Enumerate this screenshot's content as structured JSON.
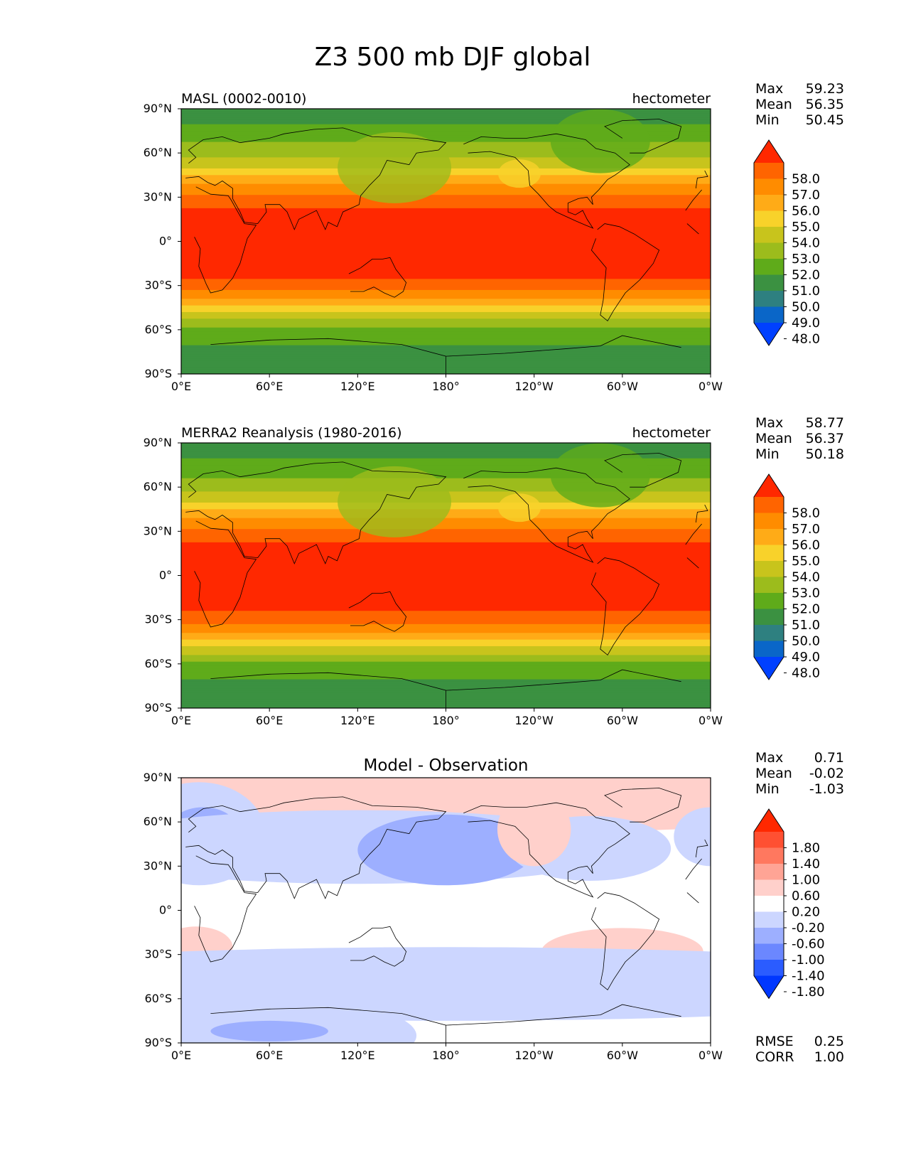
{
  "figure_title": "Z3 500 mb DJF global",
  "colors": {
    "abs_levels": [
      "#0040ff",
      "#0a66c8",
      "#2e8080",
      "#3b9141",
      "#5fab1a",
      "#9cbc1c",
      "#c8c41c",
      "#f8d22a",
      "#ffab17",
      "#ff8c00",
      "#ff6400",
      "#ff2800"
    ],
    "diff_levels": [
      "#0037ff",
      "#2b5cff",
      "#6b87ff",
      "#9dafff",
      "#ccd6ff",
      "#ffffff",
      "#ffd0cb",
      "#ffa495",
      "#ff785f",
      "#ff5032",
      "#ff2800"
    ],
    "coastline": "#000000"
  },
  "axes": {
    "lat_ticks": [
      "90°N",
      "60°N",
      "30°N",
      "0°",
      "30°S",
      "60°S",
      "90°S"
    ],
    "lon_ticks": [
      "0°E",
      "60°E",
      "120°E",
      "180°",
      "120°W",
      "60°W",
      "0°W"
    ]
  },
  "panels": [
    {
      "id": "model",
      "left_title": "MASL (0002-0010)",
      "center_title": "",
      "right_title": "hectometer",
      "stats": [
        {
          "label": "Max",
          "value": "59.23"
        },
        {
          "label": "Mean",
          "value": "56.35"
        },
        {
          "label": "Min",
          "value": "50.45"
        }
      ],
      "extra_stats": [],
      "colorbar": {
        "kind": "abs",
        "labels": [
          "58.0",
          "57.0",
          "56.0",
          "55.0",
          "54.0",
          "53.0",
          "52.0",
          "51.0",
          "50.0",
          "49.0",
          "48.0"
        ]
      }
    },
    {
      "id": "obs",
      "left_title": "MERRA2 Reanalysis (1980-2016)",
      "center_title": "",
      "right_title": "hectometer",
      "stats": [
        {
          "label": "Max",
          "value": "58.77"
        },
        {
          "label": "Mean",
          "value": "56.37"
        },
        {
          "label": "Min",
          "value": "50.18"
        }
      ],
      "extra_stats": [],
      "colorbar": {
        "kind": "abs",
        "labels": [
          "58.0",
          "57.0",
          "56.0",
          "55.0",
          "54.0",
          "53.0",
          "52.0",
          "51.0",
          "50.0",
          "49.0",
          "48.0"
        ]
      }
    },
    {
      "id": "diff",
      "left_title": "",
      "center_title": "Model - Observation",
      "right_title": "",
      "stats": [
        {
          "label": "Max",
          "value": "0.71"
        },
        {
          "label": "Mean",
          "value": "-0.02"
        },
        {
          "label": "Min",
          "value": "-1.03"
        }
      ],
      "extra_stats": [
        {
          "label": "RMSE",
          "value": "0.25"
        },
        {
          "label": "CORR",
          "value": "1.00"
        }
      ],
      "colorbar": {
        "kind": "diff",
        "labels": [
          "1.80",
          "1.40",
          "1.00",
          "0.60",
          "0.20",
          "-0.20",
          "-0.60",
          "-1.00",
          "-1.40",
          "-1.80"
        ]
      }
    }
  ],
  "chart_data": [
    {
      "type": "heatmap",
      "title": "MASL (0002-0010)",
      "units": "hectometer",
      "x_range": [
        "0°E",
        "0°W"
      ],
      "y_range": [
        "90°S",
        "90°N"
      ],
      "zonal_profile": {
        "lat": [
          90,
          80,
          70,
          60,
          50,
          40,
          30,
          20,
          10,
          0,
          -10,
          -20,
          -30,
          -40,
          -50,
          -60,
          -70,
          -80,
          -90
        ],
        "value": [
          50.5,
          51.0,
          51.8,
          52.6,
          54.0,
          55.8,
          57.3,
          58.3,
          58.7,
          58.8,
          58.7,
          58.4,
          57.6,
          55.8,
          53.4,
          51.7,
          51.0,
          50.8,
          50.7
        ]
      },
      "stats": {
        "max": 59.23,
        "mean": 56.35,
        "min": 50.45
      },
      "contour_levels": [
        48,
        49,
        50,
        51,
        52,
        53,
        54,
        55,
        56,
        57,
        58
      ]
    },
    {
      "type": "heatmap",
      "title": "MERRA2 Reanalysis (1980-2016)",
      "units": "hectometer",
      "x_range": [
        "0°E",
        "0°W"
      ],
      "y_range": [
        "90°S",
        "90°N"
      ],
      "zonal_profile": {
        "lat": [
          90,
          80,
          70,
          60,
          50,
          40,
          30,
          20,
          10,
          0,
          -10,
          -20,
          -30,
          -40,
          -50,
          -60,
          -70,
          -80,
          -90
        ],
        "value": [
          50.4,
          50.9,
          51.7,
          52.5,
          54.0,
          55.9,
          57.3,
          58.3,
          58.6,
          58.7,
          58.6,
          58.3,
          57.5,
          55.9,
          53.6,
          51.8,
          51.0,
          50.6,
          50.5
        ]
      },
      "stats": {
        "max": 58.77,
        "mean": 56.37,
        "min": 50.18
      },
      "contour_levels": [
        48,
        49,
        50,
        51,
        52,
        53,
        54,
        55,
        56,
        57,
        58
      ]
    },
    {
      "type": "heatmap",
      "title": "Model - Observation",
      "x_range": [
        "0°E",
        "0°W"
      ],
      "y_range": [
        "90°S",
        "90°N"
      ],
      "stats": {
        "max": 0.71,
        "mean": -0.02,
        "min": -1.03,
        "rmse": 0.25,
        "corr": 1.0
      },
      "contour_levels": [
        -1.8,
        -1.4,
        -1.0,
        -0.6,
        -0.2,
        0.2,
        0.6,
        1.0,
        1.4,
        1.8
      ]
    }
  ]
}
